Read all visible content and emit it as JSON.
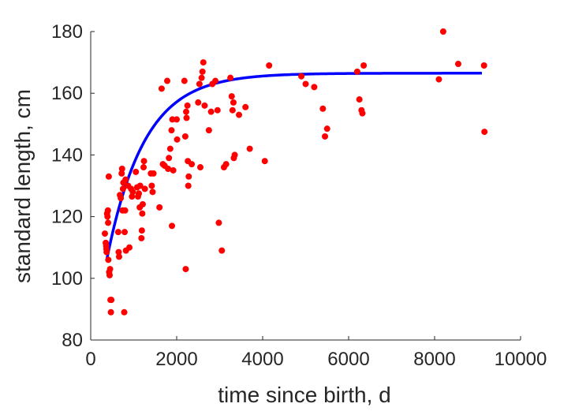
{
  "chart_data": {
    "type": "scatter",
    "title": "",
    "xlabel": "time since birth, d",
    "ylabel": "standard length, cm",
    "xlim": [
      0,
      10000
    ],
    "ylim": [
      80,
      180
    ],
    "xticks": [
      0,
      2000,
      4000,
      6000,
      8000,
      10000
    ],
    "yticks": [
      80,
      100,
      120,
      140,
      160,
      180
    ],
    "grid": false,
    "legend": "none",
    "colors": {
      "points": "#ff0000",
      "fit": "#0000ff",
      "axis": "#262626"
    },
    "series": [
      {
        "type": "scatter",
        "points": [
          [
            330,
            114.5
          ],
          [
            350,
            111.5
          ],
          [
            360,
            110.5
          ],
          [
            365,
            109.5
          ],
          [
            370,
            108.5
          ],
          [
            380,
            121
          ],
          [
            390,
            120
          ],
          [
            400,
            122
          ],
          [
            405,
            118
          ],
          [
            410,
            106
          ],
          [
            420,
            133
          ],
          [
            430,
            102
          ],
          [
            440,
            101
          ],
          [
            450,
            103
          ],
          [
            460,
            93
          ],
          [
            470,
            89
          ],
          [
            480,
            93
          ],
          [
            640,
            115
          ],
          [
            650,
            108.5
          ],
          [
            660,
            107
          ],
          [
            680,
            127
          ],
          [
            700,
            126
          ],
          [
            720,
            134
          ],
          [
            730,
            135.5
          ],
          [
            740,
            122
          ],
          [
            750,
            129
          ],
          [
            760,
            131
          ],
          [
            780,
            89
          ],
          [
            790,
            115
          ],
          [
            800,
            122
          ],
          [
            810,
            132
          ],
          [
            820,
            109
          ],
          [
            870,
            130
          ],
          [
            900,
            110
          ],
          [
            940,
            129
          ],
          [
            960,
            126.5
          ],
          [
            980,
            128
          ],
          [
            1050,
            134.5
          ],
          [
            1080,
            129.5
          ],
          [
            1100,
            126.5
          ],
          [
            1120,
            127.5
          ],
          [
            1140,
            123
          ],
          [
            1150,
            130
          ],
          [
            1180,
            113
          ],
          [
            1190,
            115.5
          ],
          [
            1200,
            121
          ],
          [
            1210,
            124
          ],
          [
            1230,
            136
          ],
          [
            1240,
            138
          ],
          [
            1260,
            129
          ],
          [
            1400,
            134
          ],
          [
            1420,
            130
          ],
          [
            1440,
            128
          ],
          [
            1460,
            134
          ],
          [
            1600,
            123
          ],
          [
            1650,
            161.5
          ],
          [
            1680,
            137
          ],
          [
            1720,
            136.5
          ],
          [
            1780,
            164
          ],
          [
            1800,
            135.5
          ],
          [
            1820,
            139
          ],
          [
            1850,
            142
          ],
          [
            1880,
            148
          ],
          [
            1890,
            117
          ],
          [
            1900,
            151.5
          ],
          [
            1920,
            135
          ],
          [
            2000,
            151.5
          ],
          [
            2010,
            145
          ],
          [
            2180,
            164
          ],
          [
            2200,
            146
          ],
          [
            2210,
            103
          ],
          [
            2220,
            154
          ],
          [
            2230,
            152
          ],
          [
            2250,
            156
          ],
          [
            2260,
            138
          ],
          [
            2270,
            130
          ],
          [
            2280,
            133
          ],
          [
            2350,
            137
          ],
          [
            2500,
            157
          ],
          [
            2530,
            163
          ],
          [
            2550,
            136
          ],
          [
            2580,
            165
          ],
          [
            2600,
            167
          ],
          [
            2620,
            170
          ],
          [
            2650,
            156
          ],
          [
            2750,
            148
          ],
          [
            2800,
            154
          ],
          [
            2830,
            163
          ],
          [
            2900,
            164
          ],
          [
            2950,
            154.5
          ],
          [
            2980,
            118
          ],
          [
            3050,
            109
          ],
          [
            3100,
            136
          ],
          [
            3150,
            137
          ],
          [
            3250,
            165
          ],
          [
            3280,
            159
          ],
          [
            3300,
            154.5
          ],
          [
            3320,
            157
          ],
          [
            3330,
            139
          ],
          [
            3350,
            140
          ],
          [
            3450,
            153
          ],
          [
            3600,
            155.5
          ],
          [
            3700,
            142
          ],
          [
            4050,
            138
          ],
          [
            4150,
            169
          ],
          [
            4900,
            165.5
          ],
          [
            5000,
            163
          ],
          [
            5200,
            162
          ],
          [
            5400,
            155
          ],
          [
            5450,
            146
          ],
          [
            5500,
            148.5
          ],
          [
            6200,
            167
          ],
          [
            6250,
            158
          ],
          [
            6300,
            154.5
          ],
          [
            6320,
            153.5
          ],
          [
            6350,
            169
          ],
          [
            8100,
            164.5
          ],
          [
            8200,
            180
          ],
          [
            8550,
            169.5
          ],
          [
            9150,
            169
          ],
          [
            9160,
            147.5
          ]
        ]
      },
      {
        "type": "line",
        "note_model": "exponential approach to asymptote",
        "x_start": 380,
        "x_end": 9100,
        "asymptote": 166.5,
        "y0": 106.5,
        "rate": 0.00115
      }
    ]
  }
}
